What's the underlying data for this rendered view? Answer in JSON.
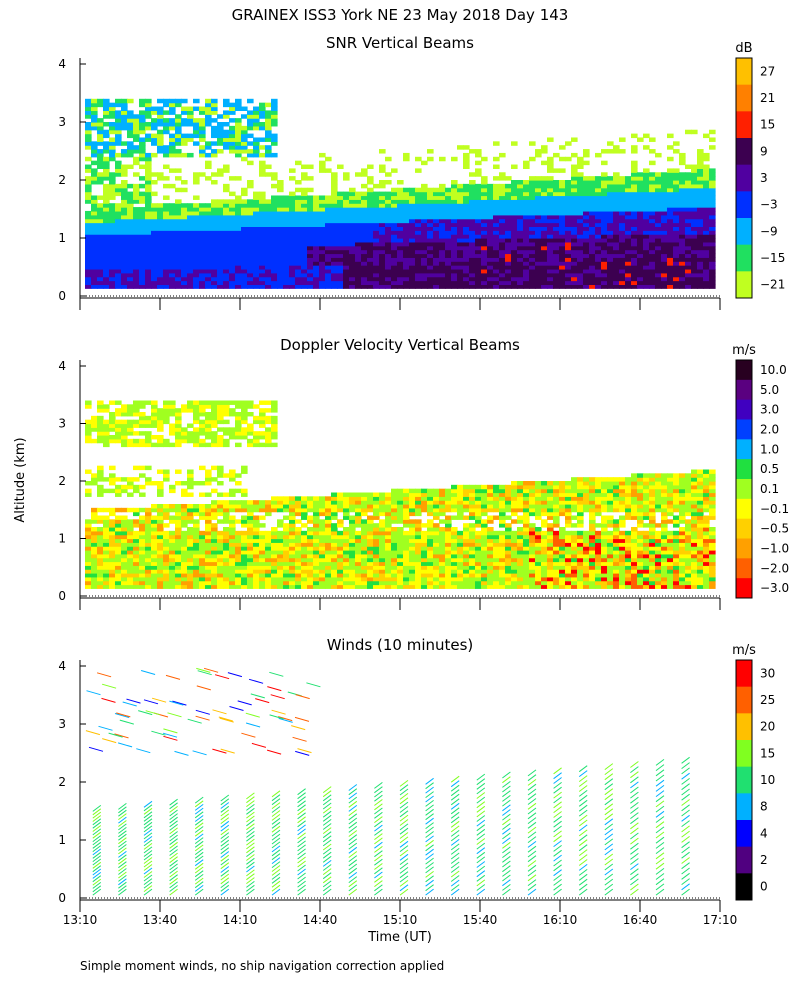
{
  "chart_data": {
    "type": "heatmap",
    "title": "GRAINEX ISS3 York NE  23 May 2018 Day 143",
    "xlabel": "Time (UT)",
    "ylabel": "Altitude (km)",
    "xticks": [
      "13:10",
      "13:40",
      "14:10",
      "14:40",
      "15:10",
      "15:40",
      "16:10",
      "16:40",
      "17:10"
    ],
    "yticks": [
      "0",
      "1",
      "2",
      "3",
      "4"
    ],
    "yrange": [
      0,
      4
    ],
    "footnote": "Simple moment winds, no ship navigation correction applied",
    "panels": [
      {
        "title": "SNR Vertical Beams",
        "unit": "dB",
        "colorbar": {
          "labels": [
            "27",
            "21",
            "15",
            "9",
            "3",
            "−3",
            "−9",
            "−15",
            "−21"
          ],
          "colors": [
            "#ffc000",
            "#ff8000",
            "#ff2000",
            "#3c0050",
            "#5000a0",
            "#0030ff",
            "#00b0ff",
            "#20e060",
            "#c0ff20"
          ]
        },
        "summary": "Layered echo near 0.2-2.2 km deepening to ~2 km later; elevated layer 2.5-3.5 km early"
      },
      {
        "title": "Doppler Velocity Vertical Beams",
        "unit": "m/s",
        "colorbar": {
          "labels": [
            "10.0",
            "5.0",
            "3.0",
            "2.0",
            "1.0",
            "0.5",
            "0.1",
            "−0.1",
            "−0.5",
            "−1.0",
            "−2.0",
            "−3.0"
          ],
          "colors": [
            "#280020",
            "#5a0080",
            "#4000c0",
            "#0040ff",
            "#00b0ff",
            "#20e040",
            "#a0ff20",
            "#ffff00",
            "#ffd000",
            "#ffa000",
            "#ff6000",
            "#ff0000"
          ]
        },
        "summary": "Mostly -0.5 to 0.5 m/s below 2.2 km, downdrafts to -3 m/s after 16:00"
      },
      {
        "title": "Winds (10 minutes)",
        "unit": "m/s",
        "colorbar": {
          "labels": [
            "30",
            "25",
            "20",
            "15",
            "10",
            "8",
            "4",
            "2",
            "0"
          ],
          "colors": [
            "#ff0000",
            "#ff6000",
            "#ffc000",
            "#80ff20",
            "#20e070",
            "#00b0ff",
            "#0000ff",
            "#500080",
            "#000000"
          ]
        },
        "summary": "Wind barb columns every 10 min, mostly 10-15 m/s; stronger (20-30 m/s) aloft early"
      }
    ]
  }
}
